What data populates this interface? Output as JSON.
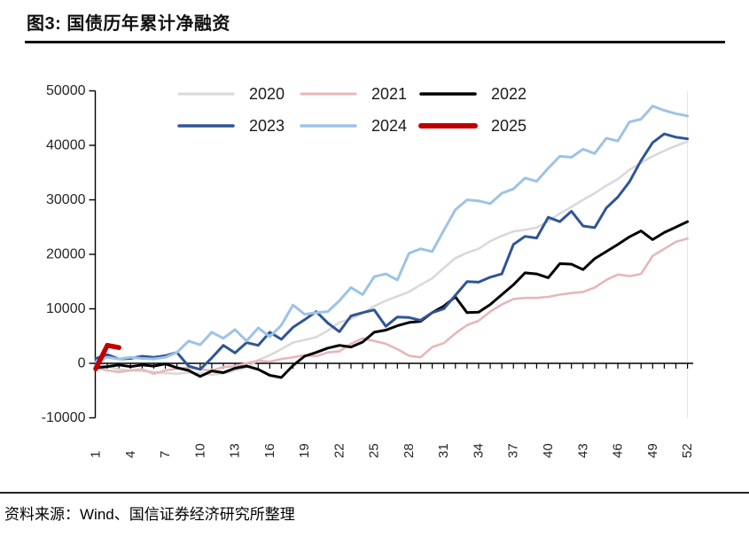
{
  "title": "图3: 国债历年累计净融资",
  "source": "资料来源：Wind、国信证券经济研究所整理",
  "chart_data": {
    "type": "line",
    "title": "图3: 国债历年累计净融资",
    "xlabel": "",
    "ylabel": "",
    "x_range": [
      1,
      52
    ],
    "ylim": [
      -10000,
      50000
    ],
    "y_ticks": [
      -10000,
      0,
      10000,
      20000,
      30000,
      40000,
      50000
    ],
    "x_tick_labels": [
      1,
      4,
      7,
      10,
      13,
      16,
      19,
      22,
      25,
      28,
      31,
      34,
      37,
      40,
      43,
      46,
      49,
      52
    ],
    "grid": "off",
    "legend_position": "top-center",
    "axis_color": "#000000",
    "label_color": "#262626",
    "series": [
      {
        "name": "2020",
        "color": "#d9d9d9",
        "width": 2.6,
        "values": [
          -300,
          -600,
          -1100,
          -1300,
          -1400,
          -1600,
          -1800,
          -1900,
          -1700,
          -1800,
          -2100,
          -1800,
          -1300,
          -800,
          600,
          1500,
          2600,
          3800,
          4300,
          4800,
          6000,
          7500,
          8200,
          9200,
          10500,
          11500,
          12300,
          13100,
          14400,
          15600,
          17500,
          19300,
          20300,
          21000,
          22400,
          23400,
          24200,
          24500,
          24900,
          26100,
          27500,
          28700,
          30000,
          31200,
          32600,
          33800,
          35500,
          36800,
          38000,
          39000,
          39900,
          40700
        ]
      },
      {
        "name": "2021",
        "color": "#e7b6ba",
        "width": 2.6,
        "values": [
          -800,
          -1300,
          -1600,
          -1300,
          -1100,
          -1900,
          -1300,
          -1000,
          -800,
          -1100,
          -1300,
          -700,
          -500,
          0,
          500,
          300,
          800,
          1100,
          1500,
          1300,
          2000,
          2200,
          3600,
          4600,
          4100,
          3600,
          2600,
          1400,
          1100,
          3000,
          3700,
          5500,
          7000,
          7800,
          9500,
          10800,
          11800,
          12000,
          12000,
          12200,
          12600,
          12900,
          13100,
          13900,
          15300,
          16300,
          16000,
          16400,
          19700,
          21000,
          22300,
          22900
        ]
      },
      {
        "name": "2022",
        "color": "#000000",
        "width": 3,
        "values": [
          -800,
          -600,
          -300,
          -600,
          -300,
          -500,
          -100,
          -800,
          -1300,
          -2400,
          -1400,
          -1700,
          -900,
          -500,
          -1100,
          -2200,
          -2600,
          -400,
          1300,
          2000,
          2800,
          3300,
          3000,
          3900,
          5700,
          6100,
          6900,
          7500,
          7700,
          9300,
          10500,
          12200,
          9300,
          9400,
          10800,
          12600,
          14400,
          16600,
          16400,
          15700,
          18300,
          18200,
          17200,
          19200,
          20500,
          21800,
          23200,
          24300,
          22700,
          24000,
          25000,
          26000
        ]
      },
      {
        "name": "2023",
        "color": "#2f5597",
        "width": 3,
        "values": [
          900,
          1600,
          800,
          900,
          1300,
          1100,
          1400,
          2000,
          -500,
          -1100,
          1000,
          3300,
          1900,
          3800,
          3300,
          5700,
          4400,
          6600,
          8000,
          9500,
          7400,
          5800,
          8700,
          9300,
          9800,
          6800,
          8500,
          8400,
          7900,
          9300,
          10000,
          12500,
          15000,
          14900,
          15800,
          16400,
          21800,
          23300,
          23000,
          26800,
          26000,
          27900,
          25200,
          24900,
          28500,
          30500,
          33300,
          37200,
          40500,
          42100,
          41500,
          41200
        ]
      },
      {
        "name": "2024",
        "color": "#9dc3e6",
        "width": 3,
        "values": [
          300,
          1100,
          800,
          1100,
          900,
          800,
          1100,
          2000,
          4100,
          3400,
          5700,
          4600,
          6200,
          4100,
          6500,
          4900,
          7000,
          10700,
          9000,
          9300,
          9500,
          11500,
          13900,
          12600,
          15900,
          16400,
          15300,
          20200,
          21000,
          20500,
          24400,
          28200,
          30000,
          29800,
          29300,
          31200,
          32000,
          34000,
          33400,
          35800,
          38000,
          37800,
          39300,
          38500,
          41300,
          40800,
          44300,
          44800,
          47200,
          46400,
          45800,
          45400
        ]
      },
      {
        "name": "2025",
        "color": "#c00000",
        "width": 5.5,
        "values": [
          -1000,
          3300,
          2900
        ]
      }
    ]
  }
}
